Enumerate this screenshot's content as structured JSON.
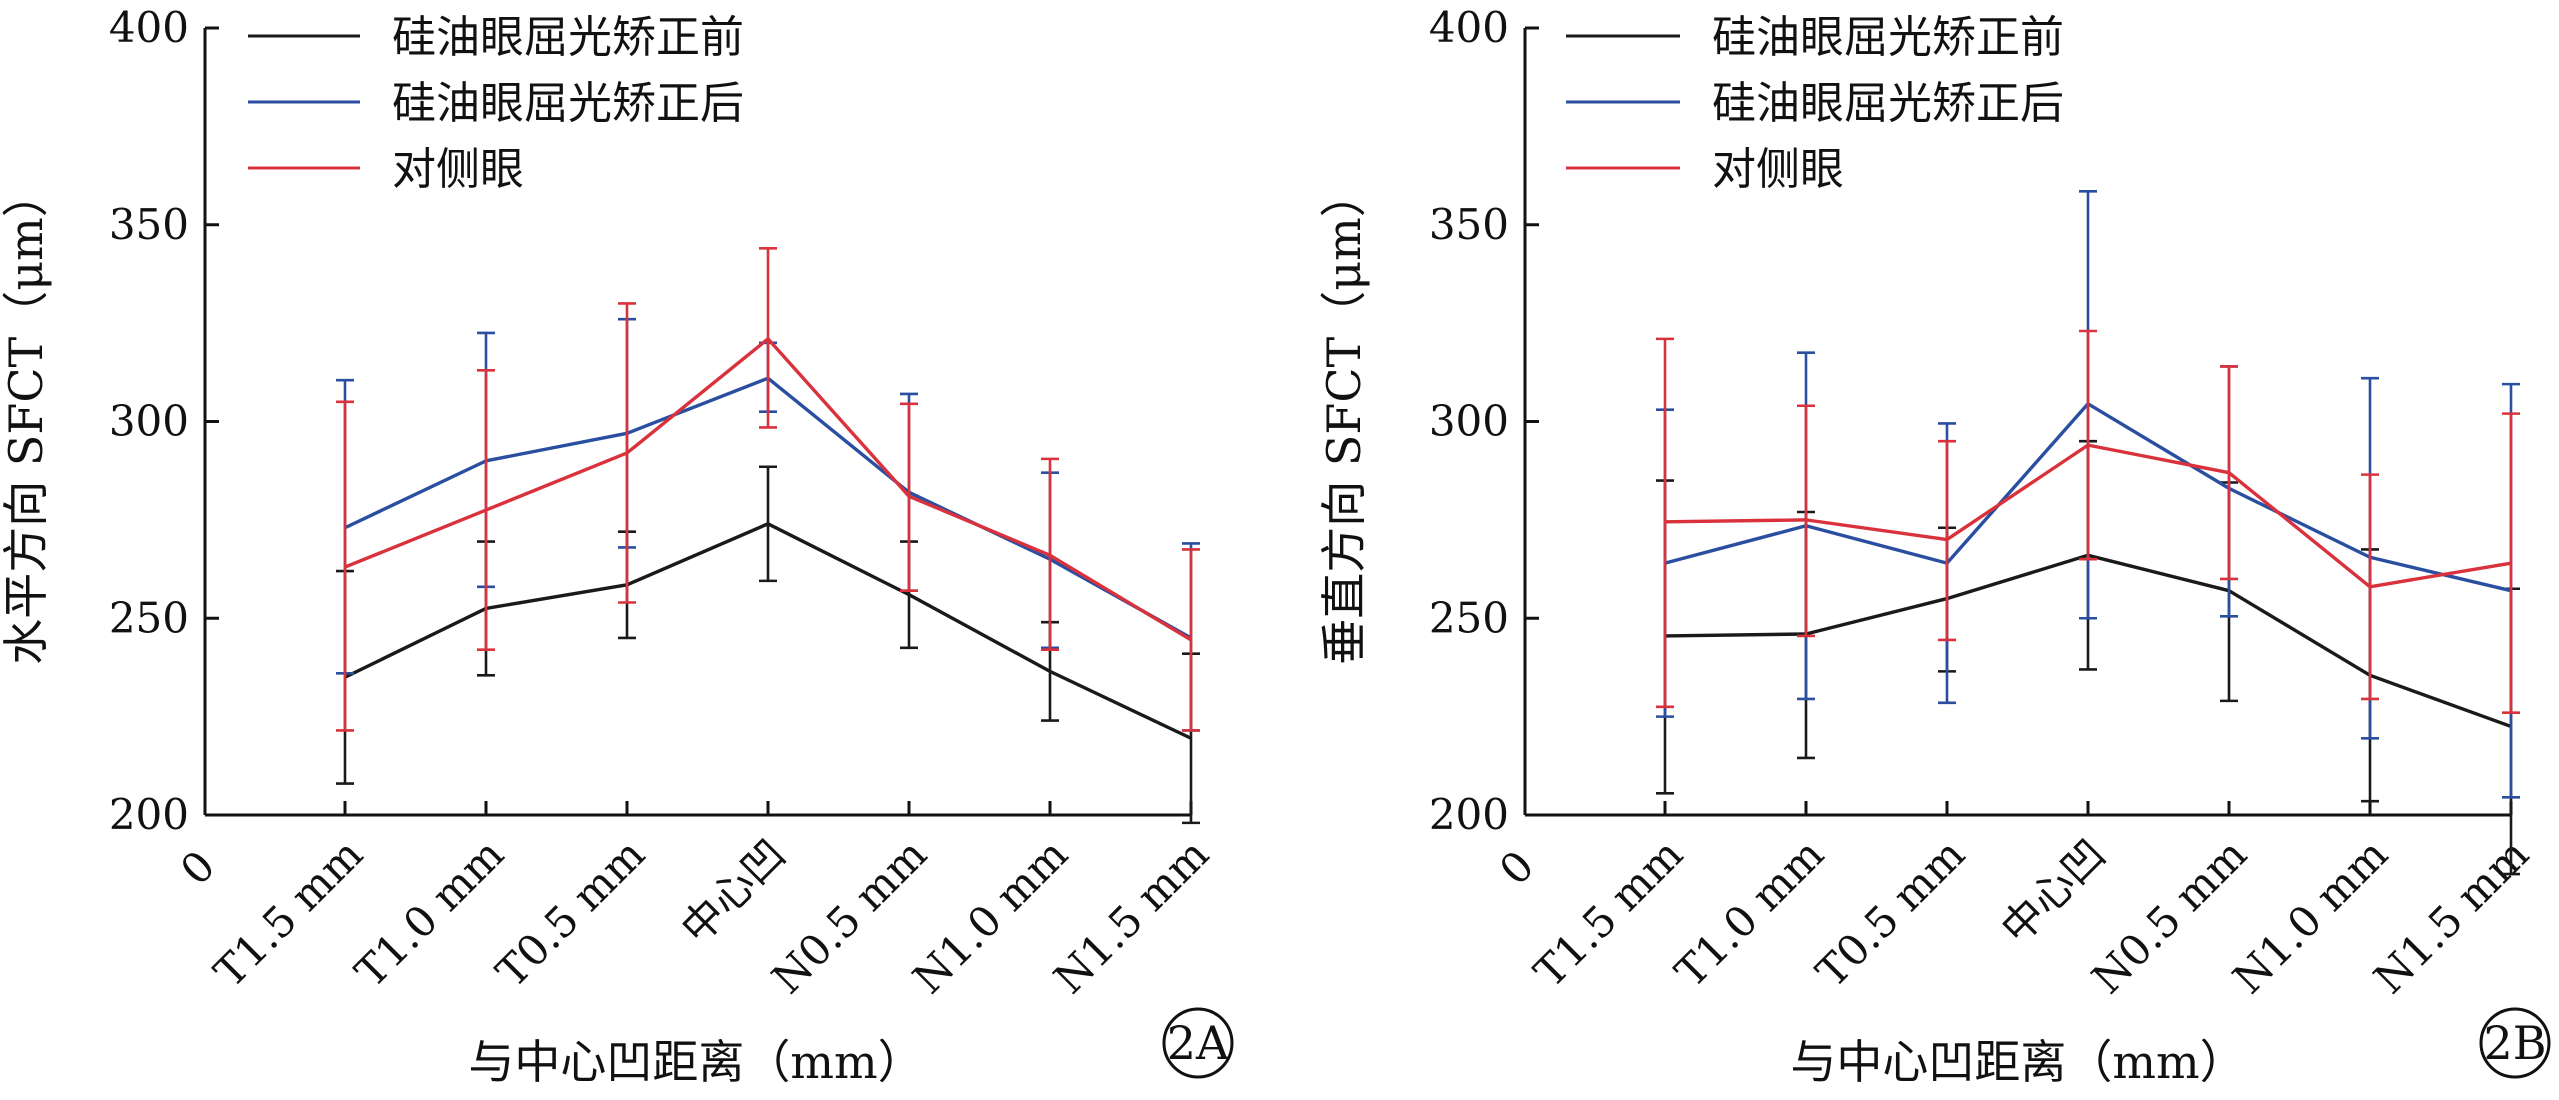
{
  "chart_data": [
    {
      "type": "line",
      "panel_label": "2A",
      "ylabel": "水平方向 SFCT（μm）",
      "xlabel": "与中心凹距离（mm）",
      "origin_label": "0",
      "categories": [
        "T1.5 mm",
        "T1.0 mm",
        "T0.5 mm",
        "中心凹",
        "N0.5 mm",
        "N1.0 mm",
        "N1.5 mm"
      ],
      "ylim": [
        200,
        400
      ],
      "yticks": [
        200,
        250,
        300,
        350,
        400
      ],
      "grid": false,
      "legend_position": "top-left",
      "series": [
        {
          "name": "硅油眼屈光矫正前",
          "color": "#1a1a1a",
          "values": [
            235,
            252.5,
            258.5,
            274,
            256,
            236.5,
            219.5
          ],
          "lower": [
            208,
            235.5,
            245,
            259.5,
            242.5,
            224,
            198
          ],
          "upper": [
            262,
            269.5,
            272,
            288.5,
            269.5,
            249,
            241
          ]
        },
        {
          "name": "硅油眼屈光矫正后",
          "color": "#2a4ea0",
          "values": [
            273,
            290,
            297,
            311,
            282,
            265,
            245
          ],
          "lower": [
            236,
            258,
            268,
            302.5,
            257,
            242.5,
            221.5
          ],
          "upper": [
            310.5,
            322.5,
            326,
            320,
            307,
            287,
            269
          ]
        },
        {
          "name": "对侧眼",
          "color": "#d9323c",
          "values": [
            263,
            277.5,
            292,
            321,
            281,
            266,
            244.5
          ],
          "lower": [
            221.5,
            242,
            254,
            298.5,
            257,
            242,
            221.5
          ],
          "upper": [
            305,
            313,
            330,
            344,
            304.5,
            290.5,
            267.5
          ]
        }
      ]
    },
    {
      "type": "line",
      "panel_label": "2B",
      "ylabel": "垂直方向 SFCT（μm）",
      "xlabel": "与中心凹距离（mm）",
      "origin_label": "0",
      "categories": [
        "T1.5 mm",
        "T1.0 mm",
        "T0.5 mm",
        "中心凹",
        "N0.5 mm",
        "N1.0 mm",
        "N1.5 mm"
      ],
      "ylim": [
        200,
        400
      ],
      "yticks": [
        200,
        250,
        300,
        350,
        400
      ],
      "grid": false,
      "legend_position": "top-left",
      "series": [
        {
          "name": "硅油眼屈光矫正前",
          "color": "#1a1a1a",
          "values": [
            245.5,
            246,
            255,
            266,
            257,
            235.5,
            222.5
          ],
          "lower": [
            205.5,
            214.5,
            236.5,
            237,
            229,
            203.5,
            185
          ],
          "upper": [
            285,
            277,
            273,
            295,
            284.5,
            267.5,
            257.5
          ]
        },
        {
          "name": "硅油眼屈光矫正后",
          "color": "#2a4ea0",
          "values": [
            264,
            273.5,
            264,
            304.5,
            283,
            265.5,
            257
          ],
          "lower": [
            225,
            229.5,
            228.5,
            250,
            250.5,
            219.5,
            204.5
          ],
          "upper": [
            303,
            317.5,
            299.5,
            358.5,
            314,
            311,
            309.5
          ]
        },
        {
          "name": "对侧眼",
          "color": "#d9323c",
          "values": [
            274.5,
            275,
            270,
            294,
            287,
            258,
            264
          ],
          "lower": [
            227.5,
            245.5,
            244.5,
            265,
            260,
            229.5,
            226
          ],
          "upper": [
            321,
            304,
            295,
            323,
            314,
            286.5,
            302
          ]
        }
      ]
    }
  ]
}
